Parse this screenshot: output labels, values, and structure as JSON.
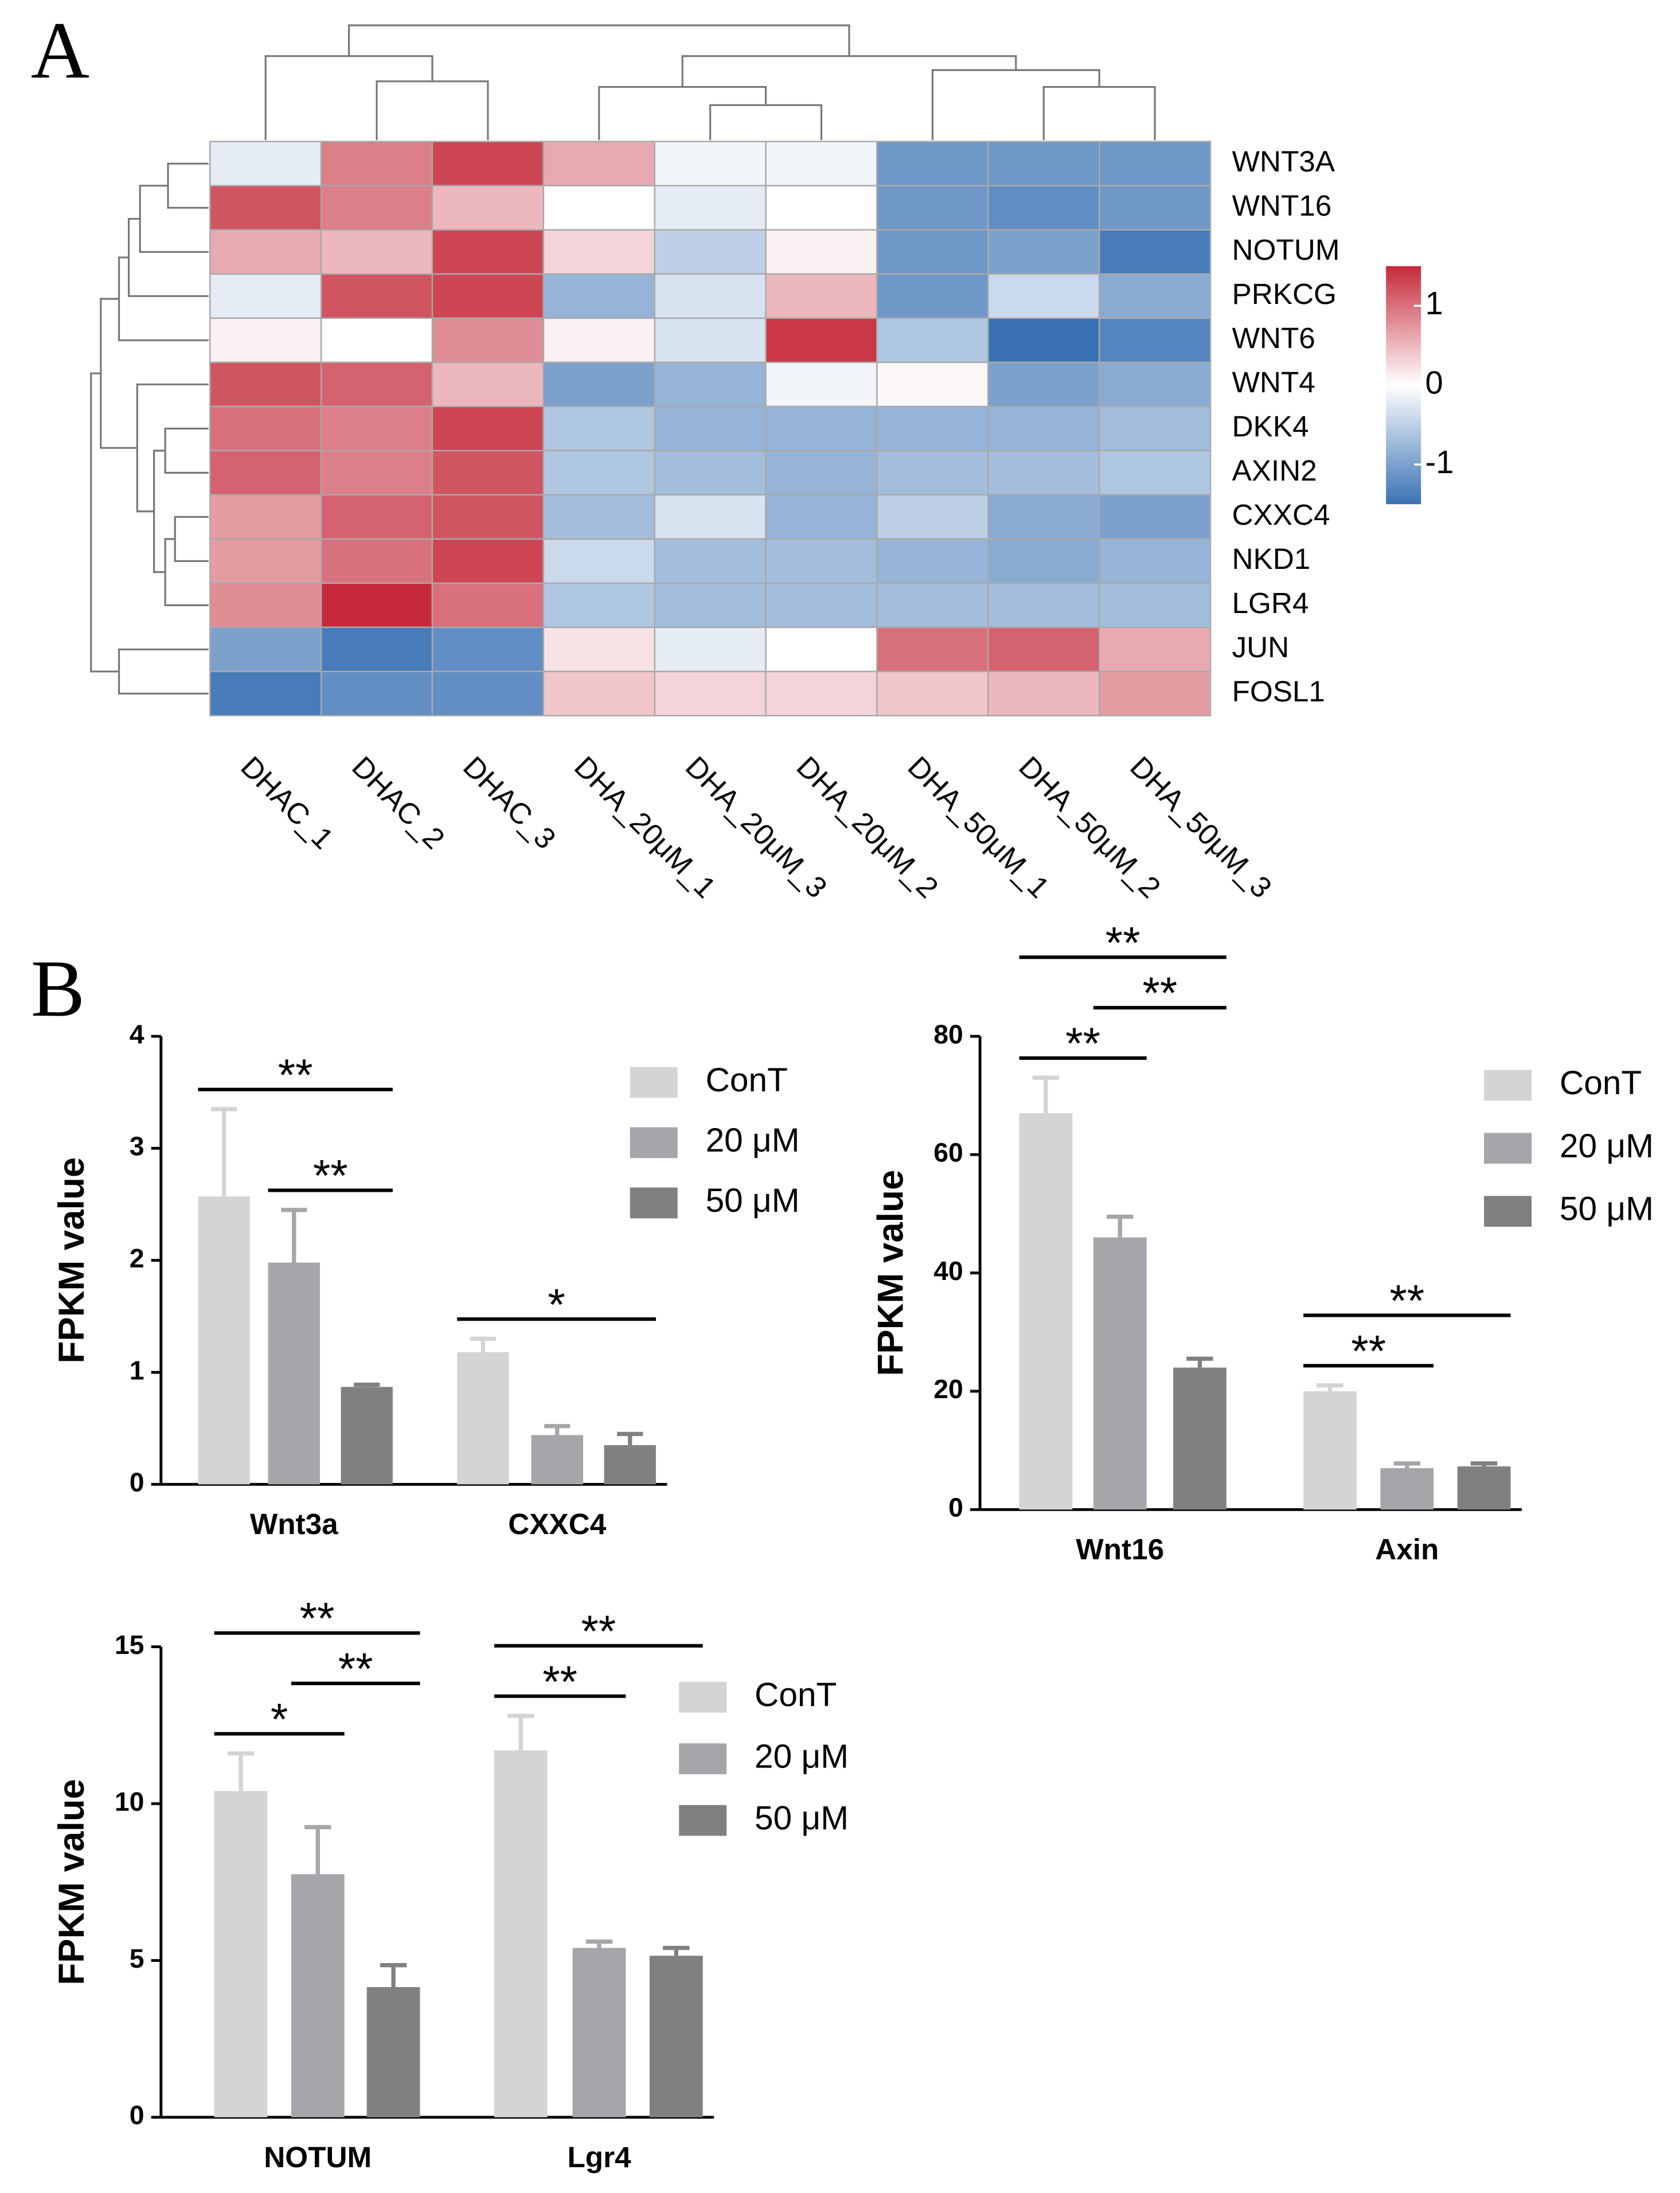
{
  "panel_labels": [
    "A",
    "B"
  ],
  "chart_data": [
    {
      "type": "heatmap",
      "columns": [
        "DHAC_1",
        "DHAC_2",
        "DHAC_3",
        "DHA_20μM_1",
        "DHA_20μM_3",
        "DHA_20μM_2",
        "DHA_50μM_1",
        "DHA_50μM_2",
        "DHA_50μM_3"
      ],
      "rows": [
        "WNT3A",
        "WNT16",
        "NOTUM",
        "PRKCG",
        "WNT6",
        "WNT4",
        "DKK4",
        "AXIN2",
        "CXXC4",
        "NKD1",
        "LGR4",
        "JUN",
        "FOSL1"
      ],
      "values": [
        [
          -0.2,
          0.9,
          1.3,
          0.6,
          -0.1,
          -0.1,
          -1.1,
          -1.1,
          -1.1
        ],
        [
          1.2,
          0.9,
          0.5,
          0.0,
          -0.2,
          0.0,
          -1.1,
          -1.2,
          -1.1
        ],
        [
          0.6,
          0.5,
          1.3,
          0.3,
          -0.5,
          0.1,
          -1.1,
          -1.0,
          -1.4
        ],
        [
          -0.2,
          1.2,
          1.3,
          -0.8,
          -0.3,
          0.5,
          -1.1,
          -0.4,
          -0.9
        ],
        [
          0.1,
          0.0,
          0.8,
          0.1,
          -0.3,
          1.4,
          -0.6,
          -1.5,
          -1.3
        ],
        [
          1.2,
          1.1,
          0.5,
          -1.0,
          -0.8,
          -0.1,
          0.05,
          -1.0,
          -0.9
        ],
        [
          1.0,
          0.9,
          1.3,
          -0.6,
          -0.8,
          -0.8,
          -0.8,
          -0.8,
          -0.7
        ],
        [
          1.1,
          0.9,
          1.2,
          -0.6,
          -0.7,
          -0.8,
          -0.7,
          -0.7,
          -0.6
        ],
        [
          0.7,
          1.1,
          1.2,
          -0.7,
          -0.3,
          -0.8,
          -0.5,
          -0.9,
          -1.0
        ],
        [
          0.7,
          1.0,
          1.3,
          -0.4,
          -0.7,
          -0.7,
          -0.8,
          -0.9,
          -0.8
        ],
        [
          0.8,
          1.5,
          1.0,
          -0.6,
          -0.7,
          -0.7,
          -0.7,
          -0.7,
          -0.7
        ],
        [
          -1.0,
          -1.4,
          -1.2,
          0.2,
          -0.2,
          0.0,
          1.0,
          1.1,
          0.6
        ],
        [
          -1.4,
          -1.2,
          -1.2,
          0.4,
          0.3,
          0.3,
          0.4,
          0.5,
          0.7
        ]
      ],
      "clim": [
        -1.5,
        1.5
      ],
      "colormap": [
        "#3a72b4",
        "#ffffff",
        "#c62a3a"
      ],
      "colorbar_ticks": [
        1,
        0,
        -1
      ]
    },
    {
      "type": "bar",
      "ylabel": "FPKM value",
      "categories": [
        "Wnt3a",
        "CXXC4"
      ],
      "series": [
        {
          "name": "ConT",
          "color": "#d4d4d4",
          "values": [
            2.57,
            1.18
          ],
          "errors": [
            0.78,
            0.12
          ]
        },
        {
          "name": "20 μM",
          "color": "#a5a5aa",
          "values": [
            1.98,
            0.44
          ],
          "errors": [
            0.47,
            0.08
          ]
        },
        {
          "name": "50 μM",
          "color": "#808080",
          "values": [
            0.87,
            0.35
          ],
          "errors": [
            0.02,
            0.1
          ]
        }
      ],
      "ylim": [
        0,
        4
      ],
      "yticks": [
        0,
        1,
        2,
        3,
        4
      ],
      "annotations": [
        {
          "text": "**",
          "category": 0,
          "from": 0,
          "to": 2
        },
        {
          "text": "**",
          "category": 0,
          "from": 1,
          "to": 2
        },
        {
          "text": "*",
          "category": 1,
          "from": 0,
          "to": 2
        }
      ]
    },
    {
      "type": "bar",
      "ylabel": "FPKM value",
      "categories": [
        "Wnt16",
        "Axin"
      ],
      "series": [
        {
          "name": "ConT",
          "color": "#d4d4d4",
          "values": [
            67,
            20
          ],
          "errors": [
            6,
            1
          ]
        },
        {
          "name": "20 μM",
          "color": "#a5a5aa",
          "values": [
            46,
            7
          ],
          "errors": [
            3.5,
            0.8
          ]
        },
        {
          "name": "50 μM",
          "color": "#808080",
          "values": [
            24,
            7.3
          ],
          "errors": [
            1.5,
            0.5
          ]
        }
      ],
      "ylim": [
        0,
        80
      ],
      "yticks": [
        0,
        20,
        40,
        60,
        80
      ],
      "annotations": [
        {
          "text": "**",
          "category": 0,
          "from": 0,
          "to": 2
        },
        {
          "text": "**",
          "category": 0,
          "from": 0,
          "to": 1
        },
        {
          "text": "**",
          "category": 0,
          "from": 1,
          "to": 2
        },
        {
          "text": "**",
          "category": 1,
          "from": 0,
          "to": 2
        },
        {
          "text": "**",
          "category": 1,
          "from": 0,
          "to": 1
        }
      ]
    },
    {
      "type": "bar",
      "ylabel": "FPKM value",
      "categories": [
        "NOTUM",
        "Lgr4"
      ],
      "series": [
        {
          "name": "ConT",
          "color": "#d4d4d4",
          "values": [
            10.4,
            11.7
          ],
          "errors": [
            1.2,
            1.1
          ]
        },
        {
          "name": "20 μM",
          "color": "#a5a5aa",
          "values": [
            7.75,
            5.4
          ],
          "errors": [
            1.5,
            0.2
          ]
        },
        {
          "name": "50 μM",
          "color": "#808080",
          "values": [
            4.15,
            5.15
          ],
          "errors": [
            0.7,
            0.25
          ]
        }
      ],
      "ylim": [
        0,
        15
      ],
      "yticks": [
        0,
        5,
        10,
        15
      ],
      "annotations": [
        {
          "text": "**",
          "category": 0,
          "from": 0,
          "to": 2
        },
        {
          "text": "*",
          "category": 0,
          "from": 0,
          "to": 1
        },
        {
          "text": "**",
          "category": 0,
          "from": 1,
          "to": 2
        },
        {
          "text": "**",
          "category": 1,
          "from": 0,
          "to": 2
        },
        {
          "text": "**",
          "category": 1,
          "from": 0,
          "to": 1
        }
      ]
    }
  ]
}
